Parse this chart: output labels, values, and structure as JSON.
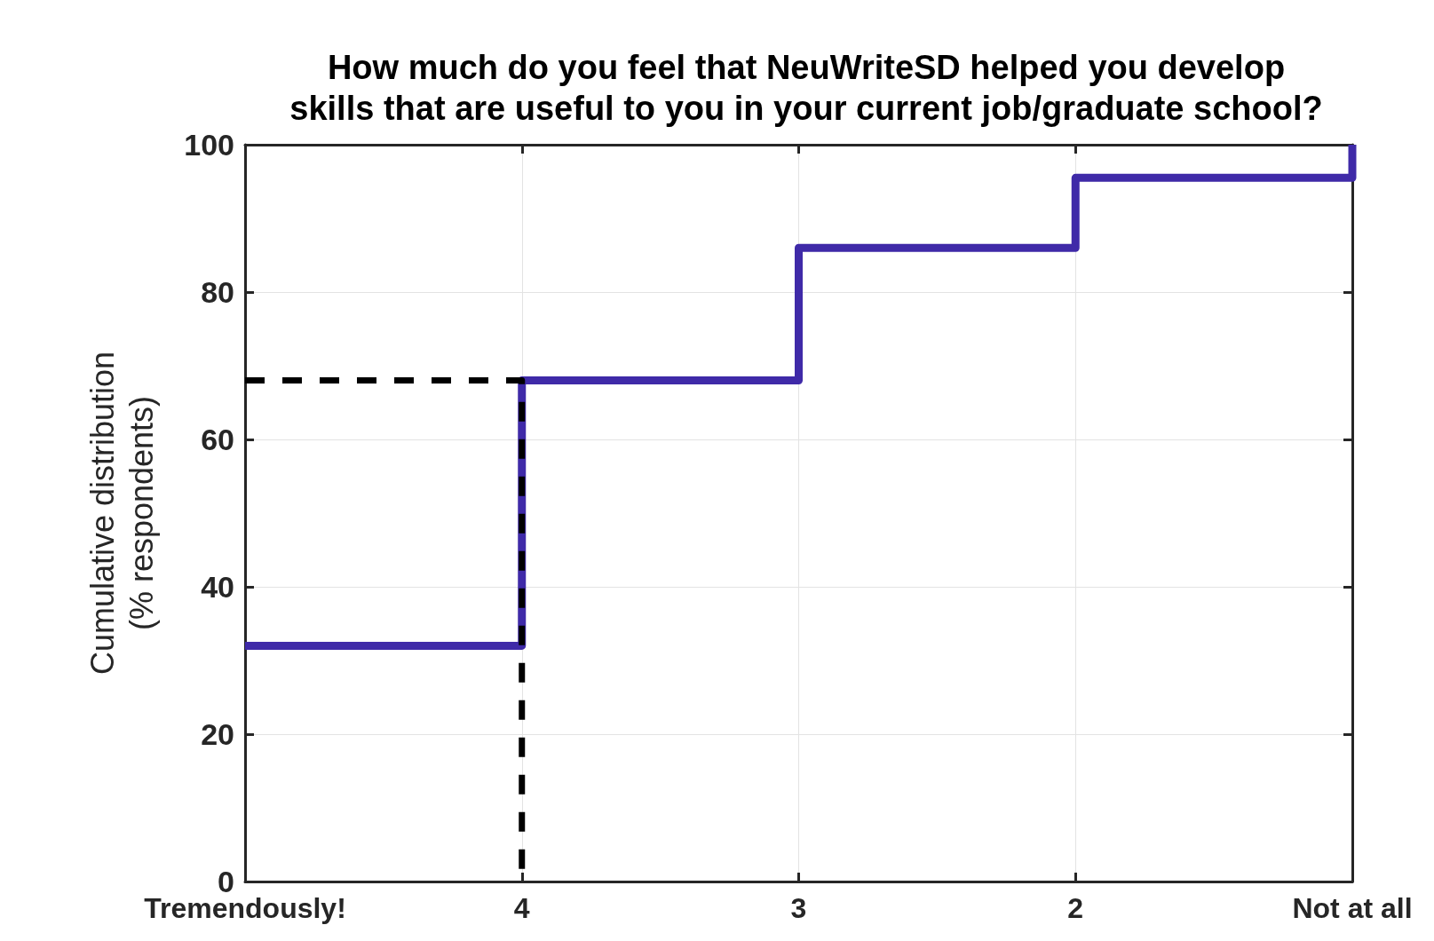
{
  "chart_data": {
    "type": "step",
    "title": "How much do you feel that NeuWriteSD helped you develop\nskills that are useful to you in your current job/graduate school?",
    "ylabel": "Cumulative distribution\n(% respondents)",
    "categories": [
      "Tremendously!",
      "4",
      "3",
      "2",
      "Not at all"
    ],
    "ylim": [
      0,
      100
    ],
    "yticks": [
      0,
      20,
      40,
      60,
      80,
      100
    ],
    "grid": true,
    "series": [
      {
        "color": "#3f2aa8",
        "values": [
          32,
          68,
          86,
          95.5,
          100
        ]
      },
      {
        "type": "line",
        "color": "#000000",
        "line_style": "dashed",
        "x": [
          "Tremendously!",
          "4",
          "4"
        ],
        "values": [
          68,
          68,
          0
        ]
      }
    ]
  }
}
